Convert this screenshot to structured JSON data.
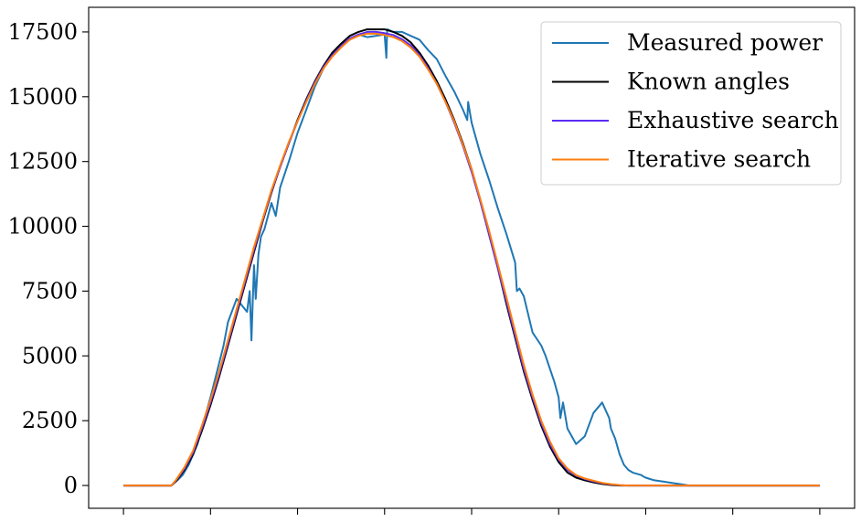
{
  "chart_data": {
    "type": "line",
    "title": "",
    "xlabel": "",
    "ylabel": "",
    "xlim": [
      -0.4,
      8.4
    ],
    "ylim": [
      -880,
      18450
    ],
    "x_ticks": [
      0,
      1,
      2,
      3,
      4,
      5,
      6,
      7,
      8
    ],
    "x_tick_labels": [],
    "y_ticks": [
      0,
      2500,
      5000,
      7500,
      10000,
      12500,
      15000,
      17500
    ],
    "y_tick_labels": [
      "0",
      "2500",
      "5000",
      "7500",
      "10000",
      "12500",
      "15000",
      "17500"
    ],
    "grid": false,
    "legend_position": "top-right",
    "series": [
      {
        "name": "Measured power",
        "color": "#1f77b4",
        "x": [
          0,
          0.55,
          0.58,
          0.62,
          0.68,
          0.75,
          0.85,
          1.0,
          1.15,
          1.2,
          1.3,
          1.42,
          1.45,
          1.47,
          1.5,
          1.52,
          1.55,
          1.58,
          1.62,
          1.7,
          1.75,
          1.8,
          1.9,
          2.0,
          2.1,
          2.2,
          2.3,
          2.4,
          2.5,
          2.6,
          2.7,
          2.8,
          2.9,
          3.0,
          3.02,
          3.03,
          3.1,
          3.2,
          3.3,
          3.4,
          3.5,
          3.6,
          3.7,
          3.8,
          3.9,
          3.95,
          3.96,
          4.0,
          4.1,
          4.2,
          4.3,
          4.4,
          4.5,
          4.52,
          4.55,
          4.6,
          4.7,
          4.8,
          4.85,
          4.9,
          4.95,
          5.0,
          5.02,
          5.05,
          5.1,
          5.2,
          5.3,
          5.4,
          5.5,
          5.58,
          5.6,
          5.65,
          5.7,
          5.75,
          5.8,
          5.85,
          5.9,
          5.95,
          5.97,
          6.0,
          6.05,
          6.1,
          6.2,
          6.3,
          6.4,
          6.5,
          6.6,
          6.7,
          6.8,
          6.9,
          7.0,
          7.1,
          7.2,
          7.3,
          7.4,
          7.5,
          7.6,
          7.7,
          7.8,
          7.9,
          8.0
        ],
        "y": [
          0,
          0,
          100,
          200,
          400,
          800,
          1600,
          3400,
          5400,
          6300,
          7200,
          6700,
          7500,
          5600,
          8500,
          7200,
          8900,
          9600,
          9900,
          10900,
          10400,
          11500,
          12500,
          13600,
          14500,
          15400,
          16100,
          16700,
          17000,
          17200,
          17400,
          17300,
          17350,
          17400,
          16500,
          17600,
          17500,
          17500,
          17350,
          17200,
          16800,
          16450,
          15800,
          15200,
          14500,
          14100,
          14800,
          14000,
          12800,
          11800,
          10700,
          9700,
          8600,
          7500,
          7600,
          7300,
          5900,
          5400,
          5000,
          4500,
          4000,
          3400,
          2600,
          3200,
          2200,
          1600,
          1900,
          2800,
          3200,
          2600,
          2200,
          1800,
          1200,
          800,
          600,
          500,
          450,
          400,
          350,
          300,
          250,
          200,
          150,
          100,
          50,
          0,
          0,
          0,
          0,
          0,
          0,
          0,
          0,
          0,
          0,
          0,
          0,
          0,
          0,
          0,
          0
        ]
      },
      {
        "name": "Known angles",
        "color": "#000000",
        "x": [
          0,
          0.55,
          0.6,
          0.7,
          0.8,
          0.9,
          1.0,
          1.1,
          1.2,
          1.3,
          1.4,
          1.5,
          1.6,
          1.7,
          1.8,
          1.9,
          2.0,
          2.1,
          2.2,
          2.3,
          2.4,
          2.5,
          2.6,
          2.7,
          2.8,
          2.9,
          3.0,
          3.1,
          3.2,
          3.3,
          3.4,
          3.5,
          3.6,
          3.7,
          3.8,
          3.9,
          4.0,
          4.1,
          4.2,
          4.3,
          4.4,
          4.5,
          4.6,
          4.7,
          4.8,
          4.9,
          5.0,
          5.1,
          5.2,
          5.3,
          5.4,
          5.5,
          5.6,
          5.7,
          5.8,
          5.9,
          6.0,
          6.1,
          6.2,
          6.3,
          6.4,
          6.5,
          6.6,
          6.7,
          6.8,
          6.9,
          7.0,
          8.0
        ],
        "y": [
          0,
          0,
          150,
          600,
          1200,
          2100,
          3100,
          4200,
          5400,
          6600,
          7800,
          9000,
          10200,
          11300,
          12300,
          13200,
          14100,
          14900,
          15600,
          16200,
          16700,
          17050,
          17350,
          17500,
          17600,
          17600,
          17600,
          17500,
          17350,
          17100,
          16700,
          16200,
          15600,
          14900,
          14100,
          13200,
          12200,
          11000,
          9700,
          8400,
          7000,
          5700,
          4400,
          3300,
          2300,
          1500,
          900,
          500,
          300,
          200,
          120,
          60,
          20,
          0,
          0,
          0,
          0,
          0,
          0,
          0,
          0,
          0,
          0,
          0,
          0,
          0,
          0,
          0
        ]
      },
      {
        "name": "Exhaustive search",
        "color": "#5b2cf5",
        "x": [
          0,
          0.55,
          0.6,
          0.7,
          0.8,
          0.9,
          1.0,
          1.1,
          1.2,
          1.3,
          1.4,
          1.5,
          1.6,
          1.7,
          1.8,
          1.9,
          2.0,
          2.1,
          2.2,
          2.3,
          2.4,
          2.5,
          2.6,
          2.7,
          2.8,
          2.9,
          3.0,
          3.1,
          3.2,
          3.3,
          3.4,
          3.5,
          3.6,
          3.7,
          3.8,
          3.9,
          4.0,
          4.1,
          4.2,
          4.3,
          4.4,
          4.5,
          4.6,
          4.7,
          4.8,
          4.9,
          5.0,
          5.1,
          5.2,
          5.3,
          5.4,
          5.5,
          5.6,
          5.7,
          5.8,
          5.9,
          6.0,
          8.0
        ],
        "y": [
          0,
          0,
          180,
          650,
          1280,
          2200,
          3200,
          4300,
          5500,
          6700,
          7900,
          9100,
          10250,
          11350,
          12300,
          13200,
          14050,
          14850,
          15550,
          16150,
          16600,
          16950,
          17250,
          17400,
          17500,
          17500,
          17450,
          17380,
          17220,
          16980,
          16600,
          16100,
          15500,
          14800,
          14000,
          13100,
          12100,
          10950,
          9700,
          8400,
          7100,
          5800,
          4500,
          3400,
          2400,
          1600,
          1000,
          600,
          380,
          250,
          160,
          90,
          40,
          10,
          0,
          0,
          0,
          0
        ]
      },
      {
        "name": "Iterative search",
        "color": "#ff7f0e",
        "x": [
          0,
          0.55,
          0.6,
          0.7,
          0.8,
          0.9,
          1.0,
          1.1,
          1.2,
          1.3,
          1.4,
          1.5,
          1.6,
          1.7,
          1.8,
          1.9,
          2.0,
          2.1,
          2.2,
          2.3,
          2.4,
          2.5,
          2.6,
          2.7,
          2.8,
          2.9,
          3.0,
          3.1,
          3.2,
          3.3,
          3.4,
          3.5,
          3.6,
          3.7,
          3.8,
          3.9,
          4.0,
          4.1,
          4.2,
          4.3,
          4.4,
          4.5,
          4.6,
          4.7,
          4.8,
          4.9,
          5.0,
          5.1,
          5.2,
          5.3,
          5.4,
          5.5,
          5.6,
          5.7,
          5.8,
          5.9,
          6.0,
          8.0
        ],
        "y": [
          0,
          0,
          200,
          700,
          1350,
          2300,
          3300,
          4400,
          5600,
          6800,
          8000,
          9200,
          10300,
          11400,
          12350,
          13250,
          14050,
          14800,
          15500,
          16100,
          16550,
          16900,
          17200,
          17350,
          17430,
          17430,
          17380,
          17300,
          17150,
          16900,
          16550,
          16050,
          15500,
          14800,
          14050,
          13150,
          12200,
          11050,
          9850,
          8550,
          7250,
          5950,
          4650,
          3500,
          2500,
          1700,
          1050,
          650,
          400,
          270,
          180,
          100,
          50,
          15,
          0,
          0,
          0,
          0
        ]
      }
    ]
  }
}
